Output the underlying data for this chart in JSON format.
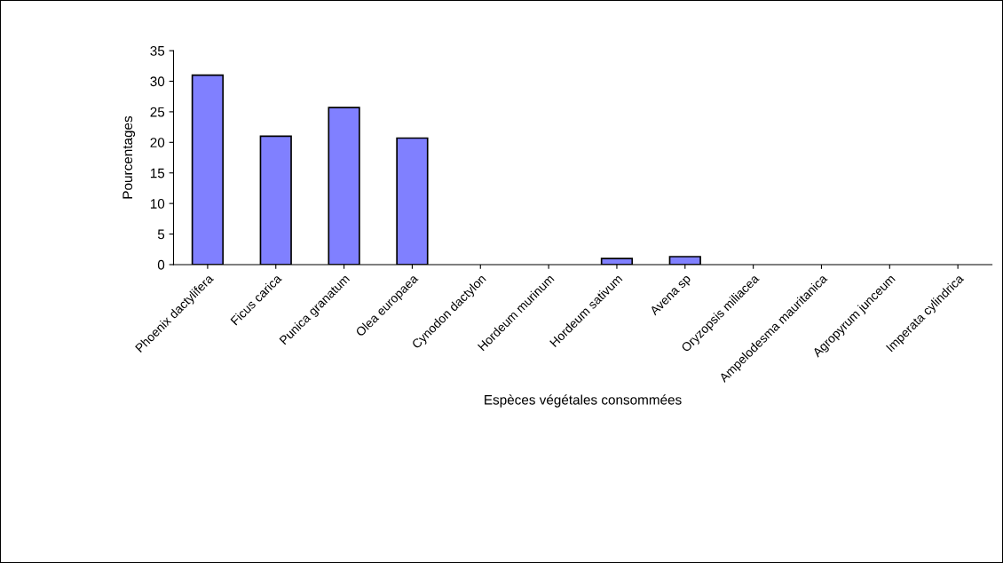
{
  "chart_data": {
    "type": "bar",
    "xlabel": "Espèces végétales consommées",
    "ylabel": "Pourcentages",
    "categories": [
      "Phoenix dactylifera",
      "Ficus carica",
      "Punica granatum",
      "Olea europaea",
      "Cynodon dactylon",
      "Hordeum murinum",
      "Hordeum sativum",
      "Avena sp",
      "Oryzopsis miliacea",
      "Ampelodesma mauritanica",
      "Agropyrum junceum",
      "Imperata cylindrica"
    ],
    "values": [
      31,
      21,
      25.7,
      20.7,
      0,
      0,
      1,
      1.3,
      0,
      0,
      0,
      0
    ],
    "color": "#8080ff",
    "ylim": [
      0,
      35
    ],
    "yticks": [
      0,
      5,
      10,
      15,
      20,
      25,
      30,
      35
    ],
    "grid": false,
    "legend": false
  }
}
